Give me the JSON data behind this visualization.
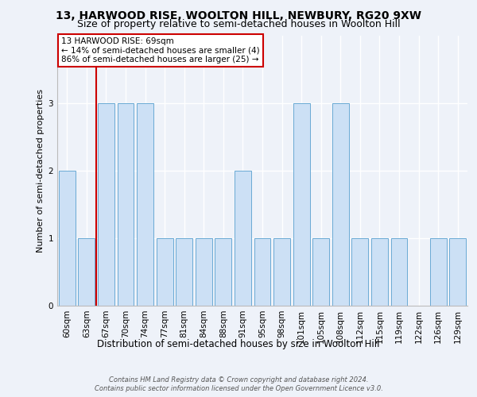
{
  "title1": "13, HARWOOD RISE, WOOLTON HILL, NEWBURY, RG20 9XW",
  "title2": "Size of property relative to semi-detached houses in Woolton Hill",
  "xlabel": "Distribution of semi-detached houses by size in Woolton Hill",
  "ylabel": "Number of semi-detached properties",
  "footer1": "Contains HM Land Registry data © Crown copyright and database right 2024.",
  "footer2": "Contains public sector information licensed under the Open Government Licence v3.0.",
  "categories": [
    "60sqm",
    "63sqm",
    "67sqm",
    "70sqm",
    "74sqm",
    "77sqm",
    "81sqm",
    "84sqm",
    "88sqm",
    "91sqm",
    "95sqm",
    "98sqm",
    "101sqm",
    "105sqm",
    "108sqm",
    "112sqm",
    "115sqm",
    "119sqm",
    "122sqm",
    "126sqm",
    "129sqm"
  ],
  "values": [
    2,
    1,
    3,
    3,
    3,
    1,
    1,
    1,
    1,
    2,
    1,
    1,
    3,
    1,
    3,
    1,
    1,
    1,
    0,
    1,
    1
  ],
  "highlight_index": 2,
  "highlight_label": "13 HARWOOD RISE: 69sqm",
  "pct_smaller": 14,
  "count_smaller": 4,
  "pct_larger": 86,
  "count_larger": 25,
  "bar_color": "#cce0f5",
  "bar_edge_color": "#6aaad4",
  "highlight_line_color": "#cc0000",
  "box_edge_color": "#cc0000",
  "ylim": [
    0,
    4
  ],
  "yticks": [
    0,
    1,
    2,
    3
  ],
  "background_color": "#eef2f9",
  "grid_color": "#ffffff",
  "title1_fontsize": 10,
  "title2_fontsize": 9,
  "xlabel_fontsize": 8.5,
  "ylabel_fontsize": 8,
  "tick_fontsize": 7.5,
  "annotation_fontsize": 7.5,
  "footer_fontsize": 6.0
}
